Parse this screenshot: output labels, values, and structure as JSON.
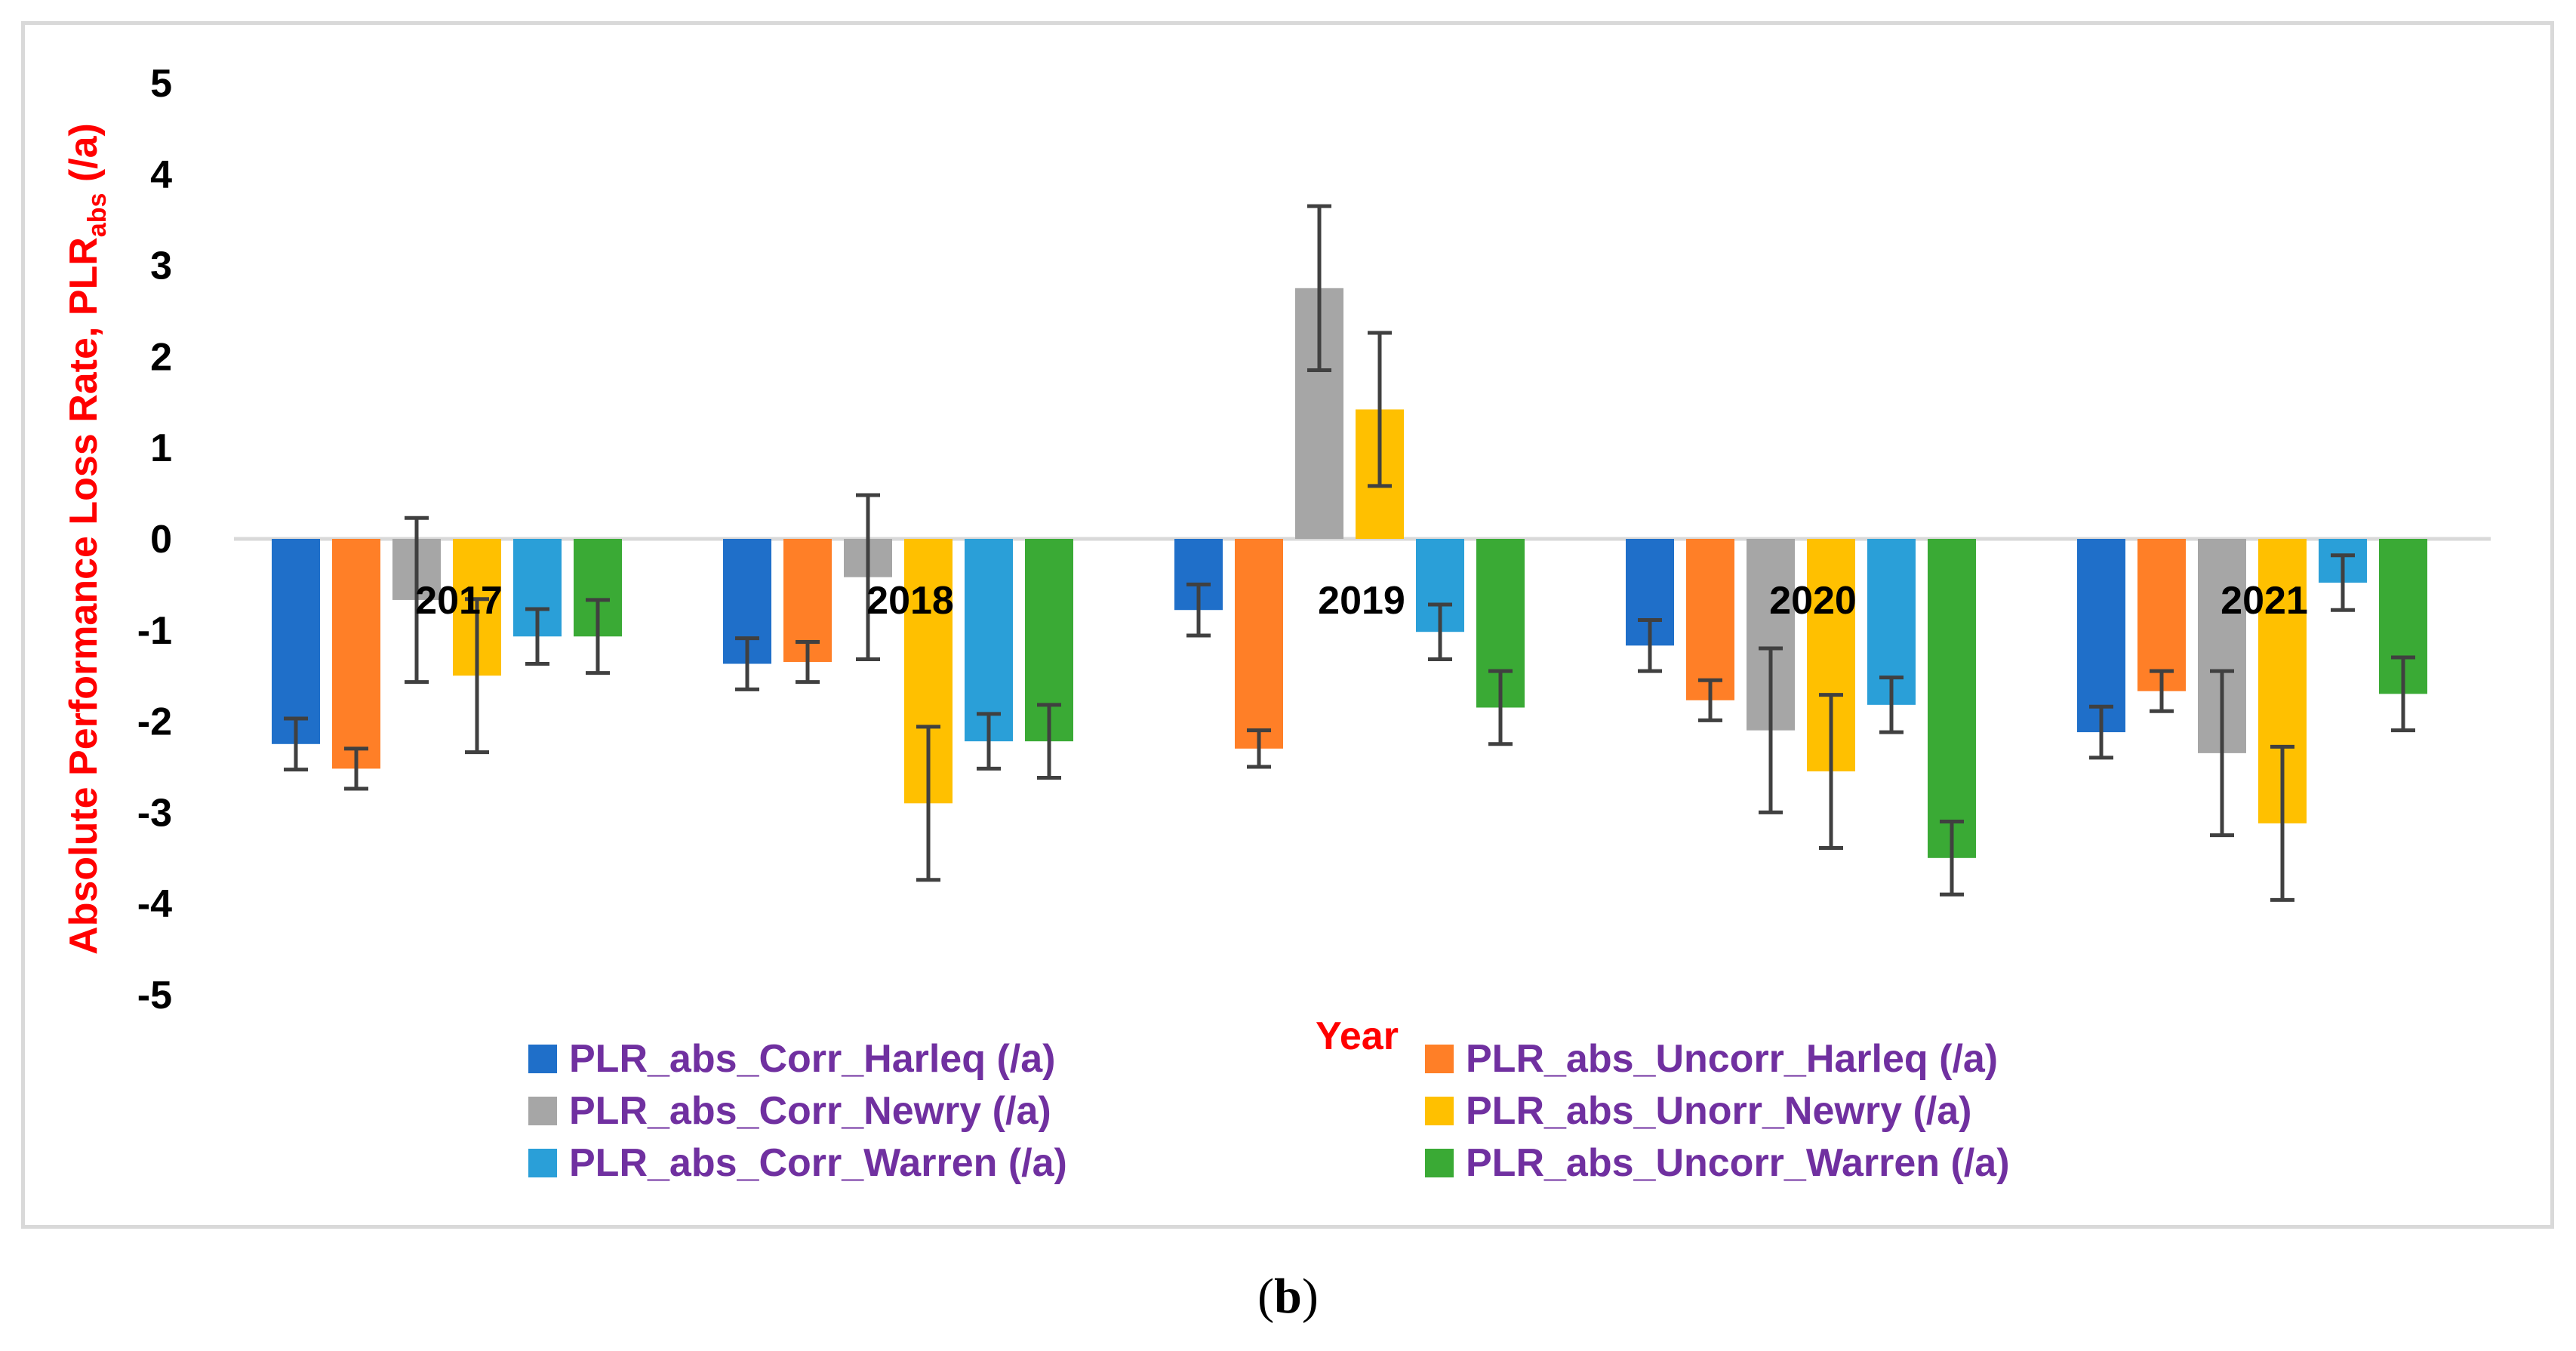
{
  "chart_data": {
    "type": "bar",
    "title": "",
    "ylabel_main": "Absolute Performance Loss Rate, PLR",
    "ylabel_sub": "abs",
    "ylabel_suffix": " (/a)",
    "xlabel": "Year",
    "ylim": [
      -5,
      5
    ],
    "yticks": [
      "5",
      "4",
      "3",
      "2",
      "1",
      "0",
      "-1",
      "-2",
      "-3",
      "-4",
      "-5"
    ],
    "ytick_values": [
      5,
      4,
      3,
      2,
      1,
      0,
      -1,
      -2,
      -3,
      -4,
      -5
    ],
    "grid": false,
    "legend_position": "bottom",
    "categories": [
      "2017",
      "2018",
      "2019",
      "2020",
      "2021"
    ],
    "series": [
      {
        "name": "PLR_abs_Corr_Harleq (/a)",
        "color": "#1f6fc9",
        "values": [
          -2.25,
          -1.37,
          -0.78,
          -1.17,
          -2.12
        ],
        "errors": [
          0.28,
          0.28,
          0.28,
          0.28,
          0.28
        ]
      },
      {
        "name": "PLR_abs_Uncorr_Harleq (/a)",
        "color": "#ff7f27",
        "values": [
          -2.52,
          -1.35,
          -2.3,
          -1.77,
          -1.67
        ],
        "errors": [
          0.22,
          0.22,
          0.2,
          0.22,
          0.22
        ]
      },
      {
        "name": "PLR_abs_Corr_Newry (/a)",
        "color": "#a6a6a6",
        "values": [
          -0.67,
          -0.42,
          2.75,
          -2.1,
          -2.35
        ],
        "errors": [
          0.9,
          0.9,
          0.9,
          0.9,
          0.9
        ]
      },
      {
        "name": "PLR_abs_Unorr_Newry (/a)",
        "color": "#ffc000",
        "values": [
          -1.5,
          -2.9,
          1.42,
          -2.55,
          -3.12
        ],
        "errors": [
          0.84,
          0.84,
          0.84,
          0.84,
          0.84
        ]
      },
      {
        "name": "PLR_abs_Corr_Warren (/a)",
        "color": "#2a9fd8",
        "values": [
          -1.07,
          -2.22,
          -1.02,
          -1.82,
          -0.48
        ],
        "errors": [
          0.3,
          0.3,
          0.3,
          0.3,
          0.3
        ]
      },
      {
        "name": "PLR_abs_Uncorr_Warren (/a)",
        "color": "#3aaa35",
        "values": [
          -1.07,
          -2.22,
          -1.85,
          -3.5,
          -1.7
        ],
        "errors": [
          0.4,
          0.4,
          0.4,
          0.4,
          0.4
        ]
      }
    ],
    "colors": {
      "ylabel": "#ff0000",
      "xlabel": "#ff0000",
      "legend_text": "#7030a0",
      "axis": "#d9d9d9",
      "error_bar": "#404040",
      "tick_text": "#000000"
    }
  },
  "caption": {
    "open": "(",
    "letter": "b",
    "close": ")"
  }
}
